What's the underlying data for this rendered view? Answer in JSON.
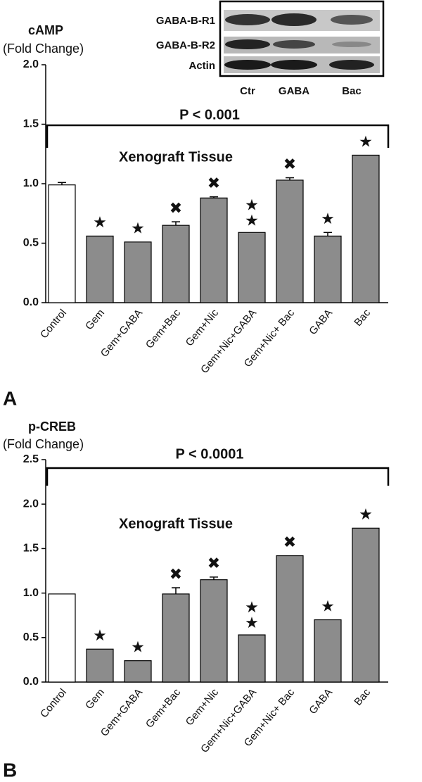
{
  "inset": {
    "rows": [
      "GABA-B-R1",
      "GABA-B-R2",
      "Actin"
    ],
    "columns": [
      "Ctr",
      "GABA",
      "Bac"
    ]
  },
  "chart_data": [
    {
      "type": "bar",
      "panel": "A",
      "ylabel": "cAMP",
      "ylabel_sub": "(Fold Change)",
      "pvalue_text": "P < 0.001",
      "annotation": "Xenograft Tissue",
      "categories": [
        "Control",
        "Gem",
        "Gem+GABA",
        "Gem+Bac",
        "Gem+Nic",
        "Gem+Nic+GABA",
        "Gem+Nic+ Bac",
        "GABA",
        "Bac"
      ],
      "values": [
        0.99,
        0.56,
        0.51,
        0.65,
        0.88,
        0.59,
        1.03,
        0.56,
        1.24
      ],
      "errors": [
        0.02,
        null,
        null,
        0.03,
        0.01,
        null,
        0.02,
        0.03,
        null
      ],
      "markers": [
        null,
        "★",
        "★",
        "✖",
        "✖",
        "★★",
        "✖",
        "★",
        "★"
      ],
      "colors": [
        "#ffffff",
        "#8c8c8c",
        "#8c8c8c",
        "#8c8c8c",
        "#8c8c8c",
        "#8c8c8c",
        "#8c8c8c",
        "#8c8c8c",
        "#8c8c8c"
      ],
      "ylim": [
        0,
        2
      ],
      "yticks": [
        {
          "value": 0,
          "label": "0.0"
        },
        0.5,
        {
          "value": 1,
          "label": "1.0"
        },
        1.5,
        {
          "value": 2,
          "label": "2.0"
        }
      ]
    },
    {
      "type": "bar",
      "panel": "B",
      "ylabel": "p-CREB",
      "ylabel_sub": "(Fold Change)",
      "pvalue_text": "P < 0.0001",
      "annotation": "Xenograft Tissue",
      "categories": [
        "Control",
        "Gem",
        "Gem+GABA",
        "Gem+Bac",
        "Gem+Nic",
        "Gem+Nic+GABA",
        "Gem+Nic+ Bac",
        "GABA",
        "Bac"
      ],
      "values": [
        0.99,
        0.37,
        0.24,
        0.99,
        1.15,
        0.53,
        1.42,
        0.7,
        1.73
      ],
      "errors": [
        null,
        null,
        null,
        0.07,
        0.03,
        null,
        null,
        null,
        null
      ],
      "markers": [
        null,
        "★",
        "★",
        "✖",
        "✖",
        "★★",
        "✖",
        "★",
        "★"
      ],
      "colors": [
        "#ffffff",
        "#8c8c8c",
        "#8c8c8c",
        "#8c8c8c",
        "#8c8c8c",
        "#8c8c8c",
        "#8c8c8c",
        "#8c8c8c",
        "#8c8c8c"
      ],
      "ylim": [
        0,
        2.5
      ],
      "yticks": [
        {
          "value": 0,
          "label": "0.0"
        },
        0.5,
        {
          "value": 1,
          "label": "1.0"
        },
        1.5,
        {
          "value": 2,
          "label": "2.0"
        },
        2.5
      ]
    }
  ]
}
